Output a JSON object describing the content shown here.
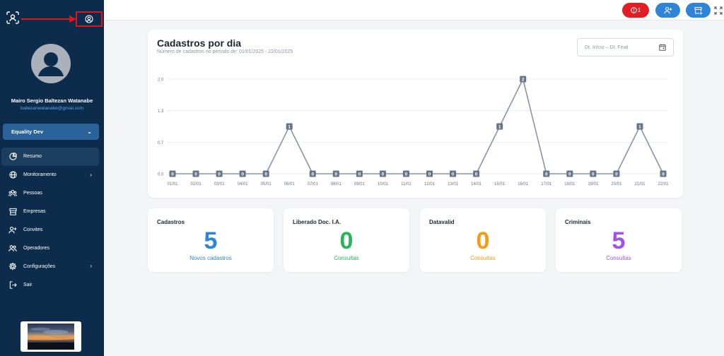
{
  "sidebar": {
    "user_name": "Mairo Sergio Baltezan Watanabe",
    "user_email": "baltezanwatanabe@gmail.com",
    "workspace": "Equality Dev",
    "items": [
      {
        "label": "Resumo",
        "icon": "pie-chart-icon",
        "active": true
      },
      {
        "label": "Monitoramento",
        "icon": "globe-icon",
        "chevron": true
      },
      {
        "label": "Pessoas",
        "icon": "people-icon"
      },
      {
        "label": "Empresas",
        "icon": "store-icon"
      },
      {
        "label": "Convites",
        "icon": "user-plus-icon"
      },
      {
        "label": "Operadores",
        "icon": "operators-icon"
      },
      {
        "label": "Configurações",
        "icon": "gear-icon",
        "chevron": true
      },
      {
        "label": "Sair",
        "icon": "logout-icon"
      }
    ]
  },
  "topbar": {
    "alert_count": "1",
    "colors": {
      "alert": "#e01e26",
      "primary": "#2f84d8"
    }
  },
  "chart": {
    "title": "Cadastros por dia",
    "subtitle": "Número de cadastros no período de: 01/01/2025 - 22/01/2025",
    "date_placeholder": "Dt. Início – Dt. Final"
  },
  "chart_data": {
    "type": "line",
    "x": [
      "01/01",
      "02/01",
      "03/01",
      "04/01",
      "05/01",
      "06/01",
      "07/01",
      "08/01",
      "09/01",
      "10/01",
      "11/01",
      "12/01",
      "13/01",
      "14/01",
      "15/01",
      "16/01",
      "17/01",
      "18/01",
      "19/01",
      "20/01",
      "21/01",
      "22/01"
    ],
    "series": [
      {
        "values": [
          0,
          0,
          0,
          0,
          0,
          1,
          0,
          0,
          0,
          0,
          0,
          0,
          0,
          0,
          1,
          2,
          0,
          0,
          0,
          0,
          1,
          0
        ]
      }
    ],
    "yticks": [
      "0.0",
      "0.7",
      "1.3",
      "2.0"
    ],
    "ylim": [
      0,
      2
    ],
    "grid": true,
    "title": "Cadastros por dia",
    "xlabel": "",
    "ylabel": ""
  },
  "stats": [
    {
      "title": "Cadastros",
      "value": "5",
      "label": "Novos cadastros",
      "color": "#2f84d8"
    },
    {
      "title": "Liberado Doc. I.A.",
      "value": "0",
      "label": "Consultas",
      "color": "#27b55a"
    },
    {
      "title": "Datavalid",
      "value": "0",
      "label": "Consultas",
      "color": "#f39c12"
    },
    {
      "title": "Criminais",
      "value": "5",
      "label": "Consultas",
      "color": "#a351e8"
    }
  ]
}
